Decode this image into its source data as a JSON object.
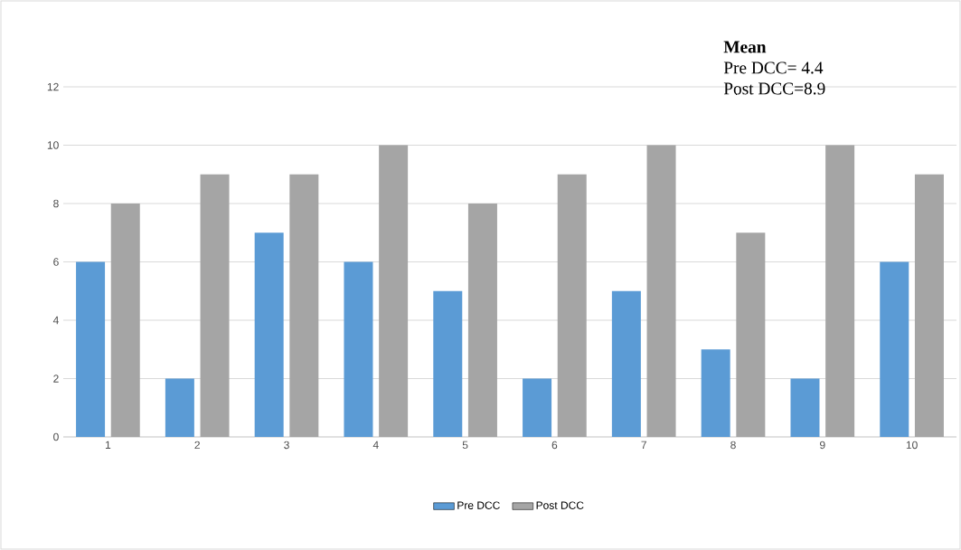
{
  "chart_data": {
    "type": "bar",
    "categories": [
      "1",
      "2",
      "3",
      "4",
      "5",
      "6",
      "7",
      "8",
      "9",
      "10"
    ],
    "series": [
      {
        "name": "Pre DCC",
        "color": "#5b9bd5",
        "values": [
          6,
          2,
          7,
          6,
          5,
          2,
          5,
          3,
          2,
          6
        ]
      },
      {
        "name": "Post DCC",
        "color": "#a5a5a5",
        "values": [
          8,
          9,
          9,
          10,
          8,
          9,
          10,
          7,
          10,
          9
        ]
      }
    ],
    "ylim": [
      0,
      12
    ],
    "yticks": [
      0,
      2,
      4,
      6,
      8,
      10,
      12
    ],
    "grid": "y",
    "legend": "bottom",
    "annotations": [
      "Mean",
      "Pre DCC= 4.4",
      "Post DCC=8.9"
    ]
  }
}
